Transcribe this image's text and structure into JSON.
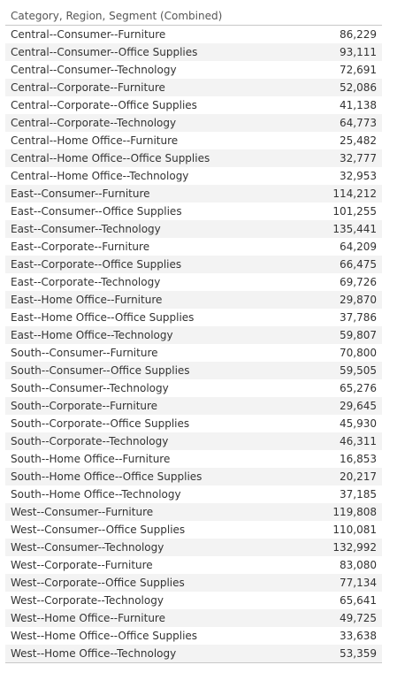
{
  "chart_data": {
    "type": "table",
    "column_header": "Category, Region, Segment (Combined)",
    "rows": [
      {
        "label": "Central--Consumer--Furniture",
        "value": "86,229"
      },
      {
        "label": "Central--Consumer--Office Supplies",
        "value": "93,111"
      },
      {
        "label": "Central--Consumer--Technology",
        "value": "72,691"
      },
      {
        "label": "Central--Corporate--Furniture",
        "value": "52,086"
      },
      {
        "label": "Central--Corporate--Office Supplies",
        "value": "41,138"
      },
      {
        "label": "Central--Corporate--Technology",
        "value": "64,773"
      },
      {
        "label": "Central--Home Office--Furniture",
        "value": "25,482"
      },
      {
        "label": "Central--Home Office--Office Supplies",
        "value": "32,777"
      },
      {
        "label": "Central--Home Office--Technology",
        "value": "32,953"
      },
      {
        "label": "East--Consumer--Furniture",
        "value": "114,212"
      },
      {
        "label": "East--Consumer--Office Supplies",
        "value": "101,255"
      },
      {
        "label": "East--Consumer--Technology",
        "value": "135,441"
      },
      {
        "label": "East--Corporate--Furniture",
        "value": "64,209"
      },
      {
        "label": "East--Corporate--Office Supplies",
        "value": "66,475"
      },
      {
        "label": "East--Corporate--Technology",
        "value": "69,726"
      },
      {
        "label": "East--Home Office--Furniture",
        "value": "29,870"
      },
      {
        "label": "East--Home Office--Office Supplies",
        "value": "37,786"
      },
      {
        "label": "East--Home Office--Technology",
        "value": "59,807"
      },
      {
        "label": "South--Consumer--Furniture",
        "value": "70,800"
      },
      {
        "label": "South--Consumer--Office Supplies",
        "value": "59,505"
      },
      {
        "label": "South--Consumer--Technology",
        "value": "65,276"
      },
      {
        "label": "South--Corporate--Furniture",
        "value": "29,645"
      },
      {
        "label": "South--Corporate--Office Supplies",
        "value": "45,930"
      },
      {
        "label": "South--Corporate--Technology",
        "value": "46,311"
      },
      {
        "label": "South--Home Office--Furniture",
        "value": "16,853"
      },
      {
        "label": "South--Home Office--Office Supplies",
        "value": "20,217"
      },
      {
        "label": "South--Home Office--Technology",
        "value": "37,185"
      },
      {
        "label": "West--Consumer--Furniture",
        "value": "119,808"
      },
      {
        "label": "West--Consumer--Office Supplies",
        "value": "110,081"
      },
      {
        "label": "West--Consumer--Technology",
        "value": "132,992"
      },
      {
        "label": "West--Corporate--Furniture",
        "value": "83,080"
      },
      {
        "label": "West--Corporate--Office Supplies",
        "value": "77,134"
      },
      {
        "label": "West--Corporate--Technology",
        "value": "65,641"
      },
      {
        "label": "West--Home Office--Furniture",
        "value": "49,725"
      },
      {
        "label": "West--Home Office--Office Supplies",
        "value": "33,638"
      },
      {
        "label": "West--Home Office--Technology",
        "value": "53,359"
      }
    ]
  },
  "colors": {
    "row_band": "#f3f3f3",
    "rule": "#c8c8c8",
    "text": "#333333",
    "header_text": "#555555"
  }
}
